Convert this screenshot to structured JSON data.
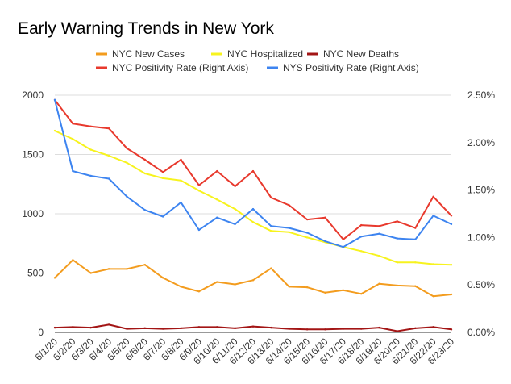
{
  "chart_data": {
    "type": "line",
    "title": "Early Warning Trends in New York",
    "categories": [
      "6/1/20",
      "6/2/20",
      "6/3/20",
      "6/4/20",
      "6/5/20",
      "6/6/20",
      "6/7/20",
      "6/8/20",
      "6/9/20",
      "6/10/20",
      "6/11/20",
      "6/12/20",
      "6/13/20",
      "6/14/20",
      "6/15/20",
      "6/16/20",
      "6/17/20",
      "6/18/20",
      "6/19/20",
      "6/20/20",
      "6/21/20",
      "6/22/20",
      "6/23/20"
    ],
    "left_axis": {
      "ylim": [
        0,
        2000
      ],
      "ticks": [
        0,
        500,
        1000,
        1500,
        2000
      ],
      "tick_labels": [
        "0",
        "500",
        "1000",
        "1500",
        "2000"
      ]
    },
    "right_axis": {
      "ylim": [
        0,
        2.5
      ],
      "ticks": [
        0,
        0.5,
        1.0,
        1.5,
        2.0,
        2.5
      ],
      "tick_labels": [
        "0.00%",
        "0.50%",
        "1.00%",
        "1.50%",
        "2.00%",
        "2.50%"
      ]
    },
    "series": [
      {
        "name": "NYC New Cases",
        "axis": "left",
        "color": "#f39c1e",
        "values": [
          460,
          610,
          500,
          535,
          535,
          570,
          460,
          385,
          345,
          425,
          405,
          440,
          540,
          385,
          380,
          335,
          355,
          325,
          410,
          395,
          390,
          305,
          320
        ]
      },
      {
        "name": "NYC Hospitalized",
        "axis": "left",
        "color": "#f7f31e",
        "values": [
          1700,
          1630,
          1540,
          1490,
          1430,
          1340,
          1300,
          1280,
          1195,
          1120,
          1040,
          930,
          855,
          845,
          800,
          760,
          720,
          685,
          645,
          590,
          590,
          575,
          570
        ]
      },
      {
        "name": "NYC New Deaths",
        "axis": "left",
        "color": "#a31515",
        "values": [
          40,
          45,
          40,
          65,
          30,
          35,
          30,
          35,
          45,
          45,
          35,
          50,
          40,
          30,
          25,
          25,
          30,
          30,
          40,
          10,
          35,
          45,
          25
        ]
      },
      {
        "name": "NYC Positivity Rate (Right Axis)",
        "axis": "right",
        "color": "#e8392d",
        "values": [
          2.45,
          2.2,
          2.17,
          2.15,
          1.94,
          1.82,
          1.69,
          1.82,
          1.55,
          1.7,
          1.54,
          1.7,
          1.42,
          1.34,
          1.19,
          1.21,
          0.98,
          1.13,
          1.12,
          1.17,
          1.1,
          1.43,
          1.23
        ]
      },
      {
        "name": "NYS Positivity Rate (Right Axis)",
        "axis": "right",
        "color": "#3d84f0",
        "values": [
          2.45,
          1.7,
          1.65,
          1.62,
          1.43,
          1.29,
          1.22,
          1.37,
          1.08,
          1.21,
          1.14,
          1.3,
          1.12,
          1.1,
          1.05,
          0.96,
          0.9,
          1.01,
          1.04,
          0.99,
          0.98,
          1.23,
          1.14
        ]
      }
    ],
    "legend": {
      "placement": "top"
    },
    "grid": true
  }
}
